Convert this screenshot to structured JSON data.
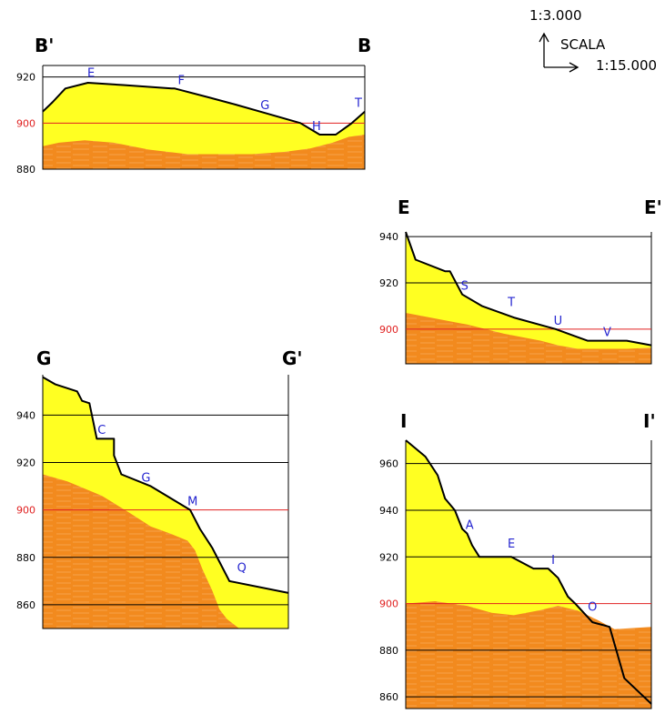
{
  "scale": {
    "vertical": "1:3.000",
    "horizontal": "1:15.000",
    "label": "SCALA"
  },
  "colors": {
    "soil": "#ffff22",
    "rock": "#f28a1e",
    "rock_light": "#f7a24a",
    "reference_line": "#e02020",
    "grid_line": "#000000",
    "point_label": "#2626d0"
  },
  "reference_elevation": 900,
  "chart_data": [
    {
      "type": "area",
      "id": "BB",
      "left_label": "B'",
      "right_label": "B",
      "y_ticks": [
        880,
        900,
        920
      ],
      "y_range": [
        880,
        925
      ],
      "x_range": [
        0,
        100
      ],
      "surface": [
        [
          0,
          905
        ],
        [
          3,
          909
        ],
        [
          7,
          915
        ],
        [
          14,
          917.5
        ],
        [
          25,
          916.5
        ],
        [
          40,
          915
        ],
        [
          41,
          915
        ],
        [
          52,
          911
        ],
        [
          60,
          908
        ],
        [
          70,
          904
        ],
        [
          80,
          900
        ],
        [
          86,
          895
        ],
        [
          91,
          895
        ],
        [
          96,
          900
        ],
        [
          100,
          905
        ]
      ],
      "bedrock": [
        [
          0,
          890
        ],
        [
          5,
          891.5
        ],
        [
          13,
          892.5
        ],
        [
          22,
          891.5
        ],
        [
          33,
          888.5
        ],
        [
          45,
          886.5
        ],
        [
          55,
          886.5
        ],
        [
          65,
          886.5
        ],
        [
          75,
          887.5
        ],
        [
          83,
          889
        ],
        [
          90,
          891.5
        ],
        [
          95,
          894
        ],
        [
          100,
          895
        ]
      ],
      "points": [
        {
          "name": "E",
          "x": 15,
          "y": 920
        },
        {
          "name": "F",
          "x": 43,
          "y": 917
        },
        {
          "name": "G",
          "x": 69,
          "y": 906
        },
        {
          "name": "H",
          "x": 85,
          "y": 897
        },
        {
          "name": "T",
          "x": 98,
          "y": 907
        }
      ]
    },
    {
      "type": "area",
      "id": "EE",
      "left_label": "E",
      "right_label": "E'",
      "y_ticks": [
        900,
        920,
        940
      ],
      "y_range": [
        885,
        942
      ],
      "x_range": [
        0,
        100
      ],
      "surface": [
        [
          0,
          942
        ],
        [
          4,
          930
        ],
        [
          16,
          925
        ],
        [
          18,
          925
        ],
        [
          23,
          915
        ],
        [
          31,
          910
        ],
        [
          44,
          905
        ],
        [
          61,
          900
        ],
        [
          74,
          895
        ],
        [
          90,
          895
        ],
        [
          100,
          893
        ]
      ],
      "bedrock": [
        [
          0,
          907
        ],
        [
          10,
          905
        ],
        [
          25,
          902
        ],
        [
          40,
          898
        ],
        [
          55,
          895
        ],
        [
          62,
          893
        ],
        [
          70,
          891.5
        ],
        [
          80,
          891.5
        ],
        [
          90,
          891.5
        ],
        [
          100,
          892
        ]
      ],
      "points": [
        {
          "name": "S",
          "x": 24,
          "y": 917
        },
        {
          "name": "T",
          "x": 43,
          "y": 910
        },
        {
          "name": "U",
          "x": 62,
          "y": 902
        },
        {
          "name": "V",
          "x": 82,
          "y": 897
        }
      ]
    },
    {
      "type": "area",
      "id": "GG",
      "left_label": "G",
      "right_label": "G'",
      "y_ticks": [
        860,
        880,
        900,
        920,
        940
      ],
      "y_range": [
        850,
        957
      ],
      "x_range": [
        0,
        100
      ],
      "surface": [
        [
          0,
          956
        ],
        [
          5,
          953
        ],
        [
          14,
          950
        ],
        [
          16,
          946
        ],
        [
          19,
          945
        ],
        [
          20,
          940
        ],
        [
          22,
          930
        ],
        [
          29,
          930
        ],
        [
          29,
          923
        ],
        [
          32,
          915
        ],
        [
          44,
          910
        ],
        [
          60,
          900
        ],
        [
          64,
          892
        ],
        [
          69,
          884
        ],
        [
          72,
          878
        ],
        [
          76,
          870
        ],
        [
          100,
          865
        ]
      ],
      "bedrock": [
        [
          0,
          915
        ],
        [
          10,
          912
        ],
        [
          24,
          906
        ],
        [
          35,
          899
        ],
        [
          44,
          893
        ],
        [
          52,
          890
        ],
        [
          59,
          887
        ],
        [
          62,
          883
        ],
        [
          65,
          875
        ],
        [
          69,
          866
        ],
        [
          72,
          858
        ],
        [
          75,
          854
        ],
        [
          80,
          850
        ],
        [
          100,
          850
        ]
      ],
      "points": [
        {
          "name": "C",
          "x": 24,
          "y": 932
        },
        {
          "name": "G",
          "x": 42,
          "y": 912
        },
        {
          "name": "M",
          "x": 61,
          "y": 902
        },
        {
          "name": "Q",
          "x": 81,
          "y": 874
        }
      ]
    },
    {
      "type": "area",
      "id": "II",
      "left_label": "I",
      "right_label": "I'",
      "y_ticks": [
        860,
        880,
        900,
        920,
        940,
        960
      ],
      "y_range": [
        855,
        970
      ],
      "x_range": [
        0,
        100
      ],
      "surface": [
        [
          0,
          970
        ],
        [
          8,
          963
        ],
        [
          13,
          955
        ],
        [
          16,
          945
        ],
        [
          20,
          940
        ],
        [
          23,
          932
        ],
        [
          25,
          930
        ],
        [
          27,
          925
        ],
        [
          30,
          920
        ],
        [
          43,
          920
        ],
        [
          52,
          915
        ],
        [
          58,
          915
        ],
        [
          62,
          911
        ],
        [
          66,
          903
        ],
        [
          69,
          900
        ],
        [
          76,
          892
        ],
        [
          83,
          890
        ],
        [
          89,
          868
        ],
        [
          100,
          857
        ]
      ],
      "bedrock": [
        [
          0,
          900
        ],
        [
          12,
          901
        ],
        [
          25,
          899
        ],
        [
          35,
          896
        ],
        [
          44,
          895
        ],
        [
          54,
          897
        ],
        [
          62,
          899
        ],
        [
          70,
          897
        ],
        [
          78,
          893
        ],
        [
          85,
          889
        ],
        [
          100,
          890
        ]
      ],
      "points": [
        {
          "name": "A",
          "x": 26,
          "y": 932
        },
        {
          "name": "E",
          "x": 43,
          "y": 924
        },
        {
          "name": "I",
          "x": 60,
          "y": 917
        },
        {
          "name": "O",
          "x": 76,
          "y": 897
        }
      ]
    }
  ]
}
